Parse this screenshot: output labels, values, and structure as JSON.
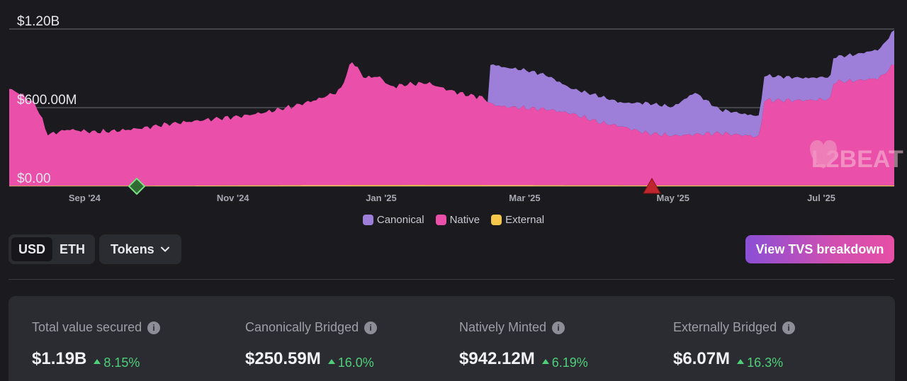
{
  "chart_data": {
    "type": "area",
    "stacked": true,
    "x_ticks": [
      "Sep '24",
      "Nov '24",
      "Jan '25",
      "Mar '25",
      "May '25",
      "Jul '25"
    ],
    "y_ticks": [
      "$0.00",
      "$600.00M",
      "$1.20B"
    ],
    "ylim": [
      0,
      1200
    ],
    "y_unit": "M USD",
    "x_range": [
      "2024-08-01",
      "2025-07-31"
    ],
    "grid": true,
    "legend_position": "bottom-center",
    "series": [
      {
        "name": "External",
        "color": "#f5c84c",
        "x": [
          "2024-08-01",
          "2024-10-15",
          "2024-12-01",
          "2025-01-15",
          "2025-03-01",
          "2025-04-15",
          "2025-06-01",
          "2025-07-31"
        ],
        "values": [
          3,
          5,
          8,
          9,
          8,
          6,
          6,
          6
        ]
      },
      {
        "name": "Native",
        "color": "#ea4faa",
        "x": [
          "2024-08-01",
          "2024-08-05",
          "2024-08-12",
          "2024-08-17",
          "2024-08-25",
          "2024-09-05",
          "2024-09-15",
          "2024-09-25",
          "2024-10-05",
          "2024-10-15",
          "2024-10-25",
          "2024-11-05",
          "2024-11-15",
          "2024-11-25",
          "2024-12-05",
          "2024-12-15",
          "2024-12-20",
          "2024-12-25",
          "2024-12-31",
          "2025-01-05",
          "2025-01-12",
          "2025-01-20",
          "2025-01-28",
          "2025-02-05",
          "2025-02-12",
          "2025-02-15",
          "2025-02-20",
          "2025-03-01",
          "2025-03-10",
          "2025-03-20",
          "2025-04-01",
          "2025-04-10",
          "2025-04-20",
          "2025-05-01",
          "2025-05-10",
          "2025-05-20",
          "2025-06-01",
          "2025-06-06",
          "2025-06-07",
          "2025-06-15",
          "2025-06-25",
          "2025-07-05",
          "2025-07-06",
          "2025-07-15",
          "2025-07-25",
          "2025-07-31"
        ],
        "values": [
          740,
          710,
          620,
          390,
          430,
          410,
          420,
          440,
          470,
          490,
          510,
          530,
          560,
          600,
          650,
          720,
          950,
          820,
          830,
          750,
          770,
          780,
          730,
          690,
          670,
          620,
          600,
          590,
          580,
          550,
          480,
          450,
          400,
          380,
          390,
          400,
          380,
          370,
          650,
          650,
          650,
          660,
          790,
          800,
          820,
          925
        ]
      },
      {
        "name": "Canonical",
        "color": "#9d7fda",
        "x": [
          "2024-08-01",
          "2025-02-14",
          "2025-02-15",
          "2025-02-20",
          "2025-03-01",
          "2025-03-10",
          "2025-03-20",
          "2025-04-01",
          "2025-04-10",
          "2025-04-20",
          "2025-05-01",
          "2025-05-10",
          "2025-05-20",
          "2025-06-01",
          "2025-06-06",
          "2025-06-07",
          "2025-06-15",
          "2025-06-25",
          "2025-07-05",
          "2025-07-06",
          "2025-07-15",
          "2025-07-25",
          "2025-07-31"
        ],
        "values": [
          0,
          0,
          310,
          300,
          290,
          260,
          190,
          200,
          180,
          230,
          220,
          320,
          180,
          160,
          160,
          190,
          180,
          170,
          170,
          190,
          200,
          220,
          260
        ]
      }
    ]
  },
  "legend": [
    {
      "label": "Canonical",
      "color": "#9d7fda"
    },
    {
      "label": "Native",
      "color": "#ea4faa"
    },
    {
      "label": "External",
      "color": "#f5c84c"
    }
  ],
  "watermark": "L2BEAT",
  "controls": {
    "units": [
      "USD",
      "ETH"
    ],
    "active_unit": "USD",
    "tokens_label": "Tokens",
    "breakdown_label": "View TVS breakdown"
  },
  "stats": [
    {
      "label": "Total value secured",
      "value": "$1.19B",
      "change": "8.15%"
    },
    {
      "label": "Canonically Bridged",
      "value": "$250.59M",
      "change": "16.0%"
    },
    {
      "label": "Natively Minted",
      "value": "$942.12M",
      "change": "6.19%"
    },
    {
      "label": "Externally Bridged",
      "value": "$6.07M",
      "change": "16.3%"
    }
  ]
}
